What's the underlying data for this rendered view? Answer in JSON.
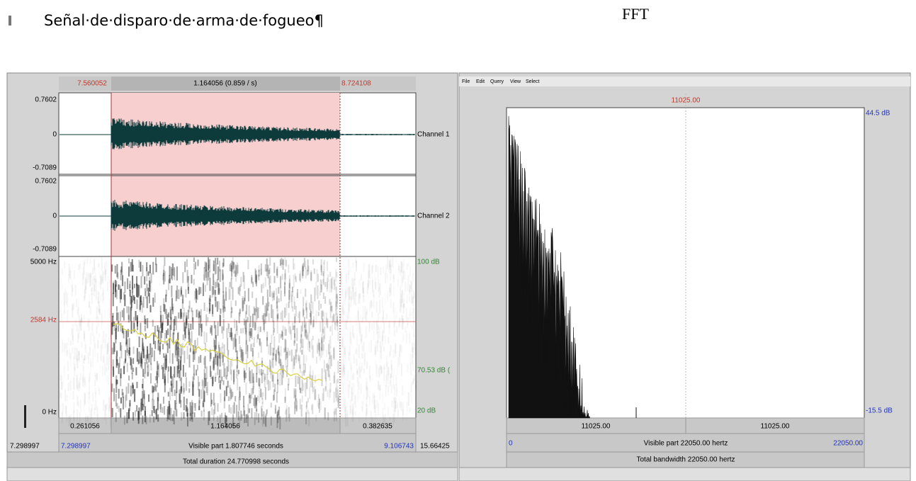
{
  "document": {
    "heading": "Señal·de·disparo·de·arma·de·fogueo¶",
    "fft_label": "FFT"
  },
  "sound_editor": {
    "selection_start": "7.560052",
    "selection_length": "1.164056 (0.859 / s)",
    "selection_end": "8.724108",
    "channels": [
      {
        "name": "Channel 1",
        "max": "0.7602",
        "zero": "0",
        "min": "-0.7089"
      },
      {
        "name": "Channel 2",
        "max": "0.7602",
        "zero": "0",
        "min": "-0.7089"
      }
    ],
    "spectrogram": {
      "top_freq": "5000 Hz",
      "cursor_freq": "2584 Hz",
      "bottom_freq": "0 Hz",
      "top_db": "100 dB",
      "mid_db": "70.53 dB (",
      "bottom_db": "20 dB"
    },
    "segments": [
      "0.261056",
      "1.164056",
      "0.382635"
    ],
    "window_start": "7.298997",
    "visible_start": "7.298997",
    "visible_part": "Visible part 1.807746 seconds",
    "visible_end": "9.106743",
    "window_end": "15.66425",
    "total_duration": "Total duration 24.770998 seconds"
  },
  "spectrum_editor": {
    "menu": [
      "File",
      "Edit",
      "Query",
      "View",
      "Select"
    ],
    "cursor": "11025.00",
    "top_db": "44.5 dB",
    "bottom_db": "-15.5 dB",
    "segments": [
      "11025.00",
      "11025.00"
    ],
    "visible_start": "0",
    "visible_part": "Visible part 22050.00 hertz",
    "visible_end": "22050.00",
    "total_bandwidth": "Total bandwidth 22050.00 hertz"
  }
}
